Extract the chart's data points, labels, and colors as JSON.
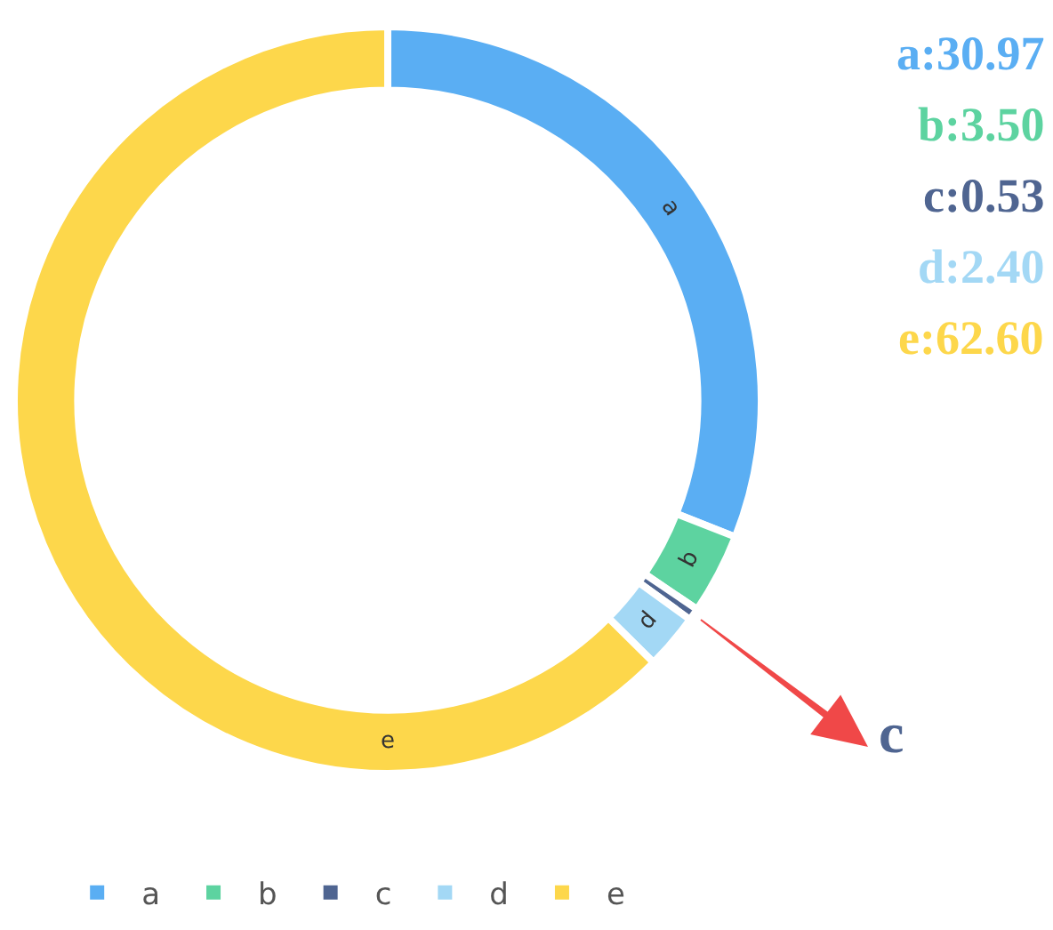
{
  "chart_data": {
    "type": "donut",
    "categories": [
      "a",
      "b",
      "c",
      "d",
      "e"
    ],
    "values": [
      30.97,
      3.5,
      0.53,
      2.4,
      62.6
    ],
    "colors": [
      "#5aaef3",
      "#5dd3a0",
      "#4f6591",
      "#a3d8f5",
      "#fdd74b"
    ],
    "legend": "bottom",
    "annotations": [
      "a:30.97",
      "b:3.50",
      "c:0.53",
      "d:2.40",
      "e:62.60",
      {
        "text": "c",
        "x": "c"
      }
    ]
  }
}
